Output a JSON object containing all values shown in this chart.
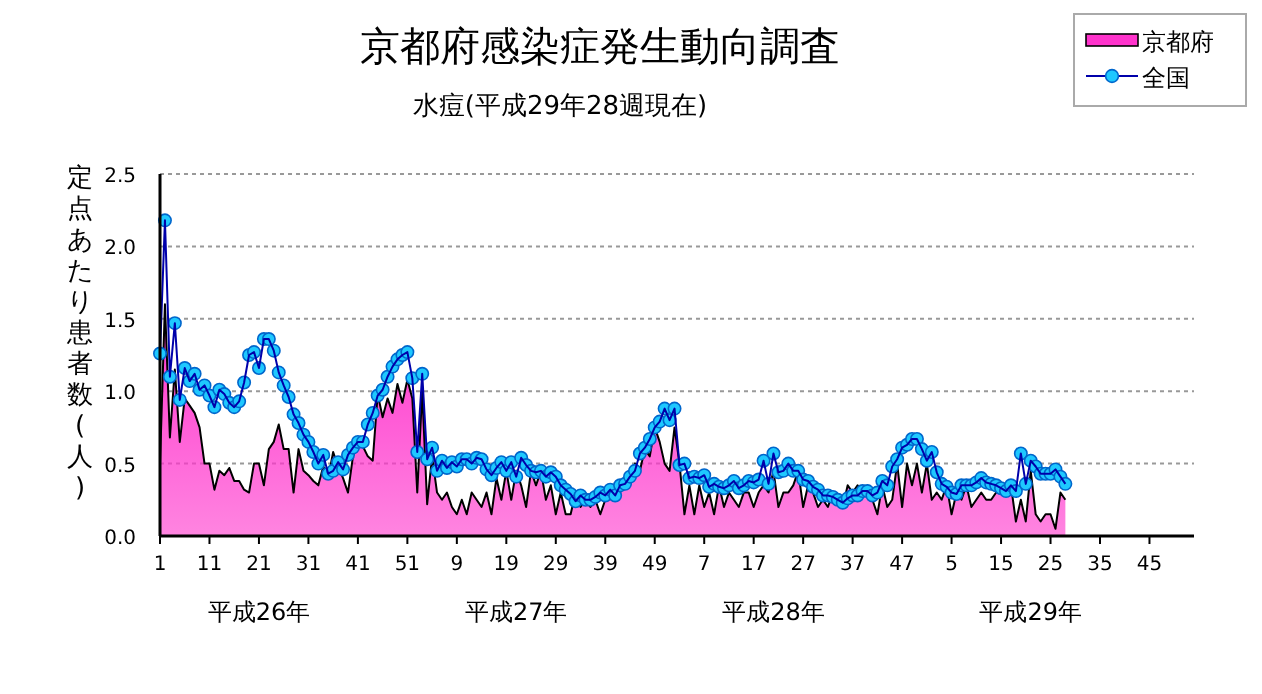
{
  "chart_data": {
    "type": "line",
    "title": "京都府感染症発生動向調査",
    "subtitle": "水痘(平成29年28週現在)",
    "ylabel": "定点あたり患者数(人)",
    "categories": [
      "1",
      null,
      null,
      null,
      null,
      null,
      null,
      null,
      null,
      null,
      "11",
      null,
      null,
      null,
      null,
      null,
      null,
      null,
      null,
      null,
      "21",
      null,
      null,
      null,
      null,
      null,
      null,
      null,
      null,
      null,
      "31",
      null,
      null,
      null,
      null,
      null,
      null,
      null,
      null,
      null,
      "41",
      null,
      null,
      null,
      null,
      null,
      null,
      null,
      null,
      null,
      "51",
      null,
      null,
      null,
      null,
      null,
      null,
      null,
      null,
      null,
      "9",
      null,
      null,
      null,
      null,
      null,
      null,
      null,
      null,
      null,
      "19",
      null,
      null,
      null,
      null,
      null,
      null,
      null,
      null,
      null,
      "29",
      null,
      null,
      null,
      null,
      null,
      null,
      null,
      null,
      null,
      "39",
      null,
      null,
      null,
      null,
      null,
      null,
      null,
      null,
      null,
      "49",
      null,
      null,
      null,
      null,
      null,
      null,
      null,
      null,
      null,
      "7",
      null,
      null,
      null,
      null,
      null,
      null,
      null,
      null,
      null,
      "17",
      null,
      null,
      null,
      null,
      null,
      null,
      null,
      null,
      null,
      "27",
      null,
      null,
      null,
      null,
      null,
      null,
      null,
      null,
      null,
      "37",
      null,
      null,
      null,
      null,
      null,
      null,
      null,
      null,
      null,
      "47",
      null,
      null,
      null,
      null,
      null,
      null,
      null,
      null,
      null,
      "5",
      null,
      null,
      null,
      null,
      null,
      null,
      null,
      null,
      null,
      "15",
      null,
      null,
      null,
      null,
      null,
      null,
      null,
      null,
      null,
      "25",
      null,
      null,
      null,
      null,
      null,
      null,
      null,
      null,
      null,
      "35",
      null,
      null,
      null,
      null,
      null,
      null,
      null,
      null,
      null,
      "45",
      null,
      null,
      null,
      null,
      null,
      null,
      null
    ],
    "series": [
      {
        "name": "京都府",
        "type": "area",
        "color": "#ff33cc",
        "values": [
          0.5,
          1.6,
          0.68,
          1.15,
          0.65,
          0.95,
          0.9,
          0.85,
          0.75,
          0.5,
          0.5,
          0.32,
          0.45,
          0.42,
          0.47,
          0.38,
          0.38,
          0.32,
          0.3,
          0.5,
          0.5,
          0.35,
          0.6,
          0.65,
          0.77,
          0.6,
          0.6,
          0.3,
          0.6,
          0.45,
          0.42,
          0.38,
          0.35,
          0.48,
          0.4,
          0.58,
          0.48,
          0.4,
          0.3,
          0.55,
          0.63,
          0.62,
          0.55,
          0.52,
          0.98,
          0.82,
          0.95,
          0.85,
          1.05,
          0.92,
          1.08,
          0.95,
          0.3,
          1.0,
          0.22,
          0.55,
          0.3,
          0.25,
          0.3,
          0.2,
          0.15,
          0.25,
          0.15,
          0.3,
          0.25,
          0.2,
          0.3,
          0.15,
          0.4,
          0.25,
          0.45,
          0.25,
          0.45,
          0.35,
          0.2,
          0.45,
          0.35,
          0.45,
          0.25,
          0.35,
          0.15,
          0.3,
          0.15,
          0.15,
          0.3,
          0.2,
          0.25,
          0.2,
          0.25,
          0.15,
          0.25,
          0.3,
          0.25,
          0.3,
          0.4,
          0.35,
          0.5,
          0.45,
          0.6,
          0.55,
          0.75,
          0.65,
          0.5,
          0.45,
          0.75,
          0.5,
          0.15,
          0.35,
          0.15,
          0.35,
          0.2,
          0.3,
          0.15,
          0.35,
          0.2,
          0.3,
          0.25,
          0.2,
          0.3,
          0.3,
          0.2,
          0.3,
          0.35,
          0.3,
          0.45,
          0.2,
          0.3,
          0.3,
          0.35,
          0.45,
          0.2,
          0.35,
          0.3,
          0.2,
          0.25,
          0.2,
          0.3,
          0.25,
          0.2,
          0.35,
          0.3,
          0.35,
          0.3,
          0.35,
          0.25,
          0.15,
          0.35,
          0.2,
          0.25,
          0.5,
          0.2,
          0.5,
          0.35,
          0.5,
          0.3,
          0.5,
          0.25,
          0.3,
          0.25,
          0.35,
          0.15,
          0.3,
          0.25,
          0.35,
          0.2,
          0.25,
          0.3,
          0.25,
          0.25,
          0.3,
          0.3,
          0.35,
          0.35,
          0.1,
          0.25,
          0.1,
          0.45,
          0.15,
          0.1,
          0.15,
          0.15,
          0.05,
          0.3,
          0.25,
          null,
          null,
          null,
          null,
          null,
          null,
          null,
          null,
          null,
          null,
          null,
          null,
          null,
          null,
          null,
          null,
          null,
          null,
          null,
          null,
          null,
          null,
          null,
          null
        ]
      },
      {
        "name": "全国",
        "type": "line",
        "marker": "circle",
        "color": "#1ec8ff",
        "values": [
          1.26,
          2.18,
          1.1,
          1.47,
          0.94,
          1.16,
          1.07,
          1.12,
          1.01,
          1.04,
          0.97,
          0.89,
          1.01,
          0.98,
          0.92,
          0.89,
          0.93,
          1.06,
          1.25,
          1.27,
          1.16,
          1.36,
          1.36,
          1.28,
          1.13,
          1.04,
          0.96,
          0.84,
          0.78,
          0.7,
          0.65,
          0.58,
          0.5,
          0.56,
          0.43,
          0.45,
          0.51,
          0.46,
          0.56,
          0.61,
          0.65,
          0.65,
          0.77,
          0.85,
          0.97,
          1.01,
          1.1,
          1.17,
          1.22,
          1.25,
          1.27,
          1.09,
          0.58,
          1.12,
          0.53,
          0.61,
          0.45,
          0.52,
          0.47,
          0.51,
          0.48,
          0.53,
          0.53,
          0.5,
          0.54,
          0.53,
          0.46,
          0.42,
          0.47,
          0.51,
          0.45,
          0.51,
          0.41,
          0.54,
          0.49,
          0.45,
          0.44,
          0.45,
          0.41,
          0.44,
          0.41,
          0.35,
          0.32,
          0.29,
          0.24,
          0.28,
          0.25,
          0.25,
          0.27,
          0.3,
          0.28,
          0.32,
          0.28,
          0.35,
          0.36,
          0.41,
          0.45,
          0.57,
          0.61,
          0.67,
          0.75,
          0.79,
          0.88,
          0.8,
          0.88,
          0.49,
          0.5,
          0.4,
          0.41,
          0.4,
          0.42,
          0.34,
          0.36,
          0.34,
          0.33,
          0.35,
          0.38,
          0.33,
          0.35,
          0.38,
          0.37,
          0.39,
          0.52,
          0.36,
          0.57,
          0.44,
          0.45,
          0.5,
          0.45,
          0.45,
          0.39,
          0.38,
          0.34,
          0.32,
          0.28,
          0.28,
          0.27,
          0.25,
          0.23,
          0.26,
          0.28,
          0.28,
          0.31,
          0.31,
          0.28,
          0.3,
          0.38,
          0.35,
          0.48,
          0.53,
          0.61,
          0.63,
          0.67,
          0.67,
          0.6,
          0.52,
          0.58,
          0.44,
          0.36,
          0.34,
          0.3,
          0.29,
          0.35,
          0.35,
          0.35,
          0.37,
          0.4,
          0.37,
          0.36,
          0.35,
          0.33,
          0.31,
          0.35,
          0.31,
          0.57,
          0.36,
          0.52,
          0.48,
          0.43,
          0.43,
          0.43,
          0.46,
          0.41,
          0.36,
          null,
          null,
          null,
          null,
          null,
          null,
          null,
          null,
          null,
          null,
          null,
          null,
          null,
          null,
          null,
          null,
          null,
          null,
          null,
          null,
          null,
          null,
          null,
          null
        ]
      }
    ],
    "ylim": [
      0,
      2.5
    ],
    "yticks": [
      {
        "value": 0,
        "label": "0.0"
      },
      {
        "value": 0.5,
        "label": "0.5"
      },
      {
        "value": 1,
        "label": "1.0"
      },
      {
        "value": 1.5,
        "label": "1.5"
      },
      {
        "value": 2,
        "label": "2.0"
      },
      {
        "value": 2.5,
        "label": "2.5"
      }
    ],
    "grid": "y",
    "legend": "top right",
    "annotations": [
      "平成26年",
      "平成27年",
      "平成28年",
      "平成29年"
    ]
  }
}
